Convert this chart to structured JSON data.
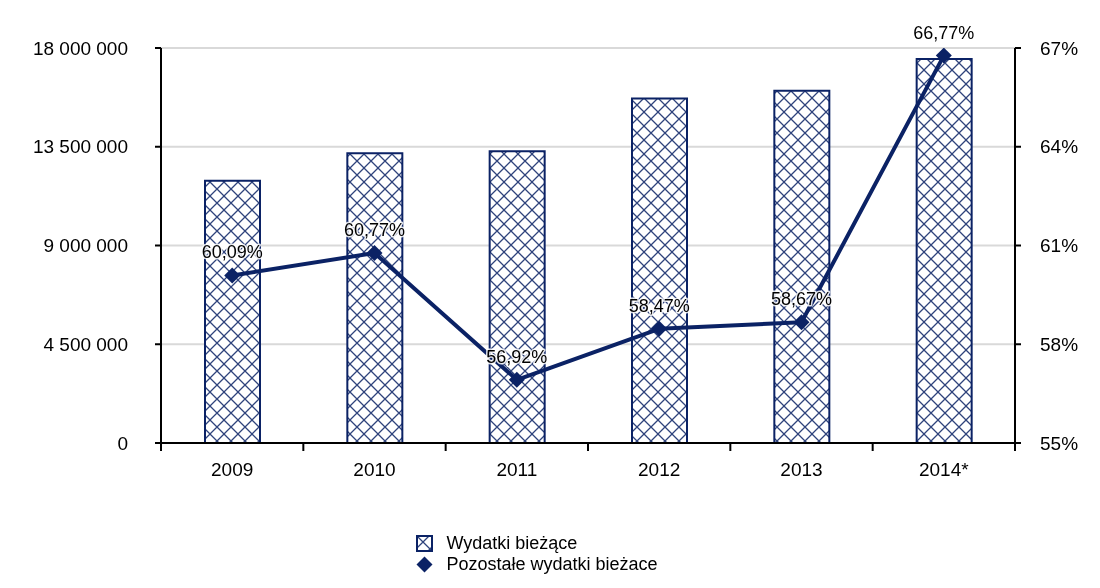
{
  "chart_data": {
    "type": "bar",
    "categories": [
      "2009",
      "2010",
      "2011",
      "2012",
      "2013",
      "2014*"
    ],
    "series": [
      {
        "name": "Wydatki bieżące",
        "color": "#0b2265",
        "values": [
          11950000,
          13200000,
          13300000,
          15700000,
          16050000,
          17500000
        ]
      },
      {
        "name": "Pozostałe wydatki bieżace",
        "type": "line",
        "axis": "y2",
        "color": "#0b2265",
        "values": [
          60.09,
          60.77,
          56.92,
          58.47,
          58.67,
          66.77
        ],
        "value_labels": [
          "60,09%",
          "60,77%",
          "56,92%",
          "58,47%",
          "58,67%",
          "66,77%"
        ]
      }
    ],
    "ylim": [
      0,
      18000000
    ],
    "yticks": [
      0,
      {
        "value": 4500000,
        "label": "4 500 000"
      },
      {
        "value": 9000000,
        "label": "9 000 000"
      },
      {
        "value": 13500000,
        "label": "13 500 000"
      },
      {
        "value": 18000000,
        "label": "18 000 000"
      }
    ],
    "y2lim": [
      55,
      67
    ],
    "y2ticks": [
      {
        "value": 55,
        "label": "55%"
      },
      {
        "value": 58,
        "label": "58%"
      },
      {
        "value": 61,
        "label": "61%"
      },
      {
        "value": 64,
        "label": "64%"
      },
      {
        "value": 67,
        "label": "67%"
      }
    ],
    "grid": "y",
    "legend": "bottom",
    "marker": "diamond",
    "line_style": "solid"
  }
}
